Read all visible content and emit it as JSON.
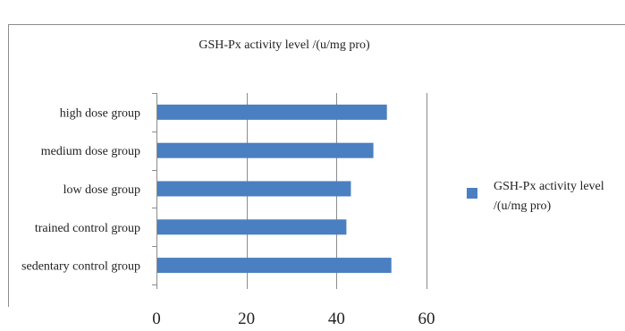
{
  "chart_data": {
    "type": "bar",
    "orientation": "horizontal",
    "title": "GSH-Px activity level /(u/mg pro)",
    "xlabel": "",
    "ylabel": "",
    "categories": [
      "sedentary control group",
      "trained control group",
      "low dose group",
      "medium dose group",
      "high dose group"
    ],
    "series": [
      {
        "name": "GSH-Px activity level /(u/mg pro)",
        "values": [
          52,
          42,
          43,
          48,
          51
        ]
      }
    ],
    "xlim": [
      0,
      60
    ],
    "x_ticks": [
      "0",
      "20",
      "40",
      "60"
    ],
    "grid": "vertical",
    "legend_position": "right",
    "colors": {
      "bar": "#4a7fc1",
      "grid": "#8c8c8c",
      "axis": "#8c8c8c",
      "text": "#222222"
    }
  }
}
